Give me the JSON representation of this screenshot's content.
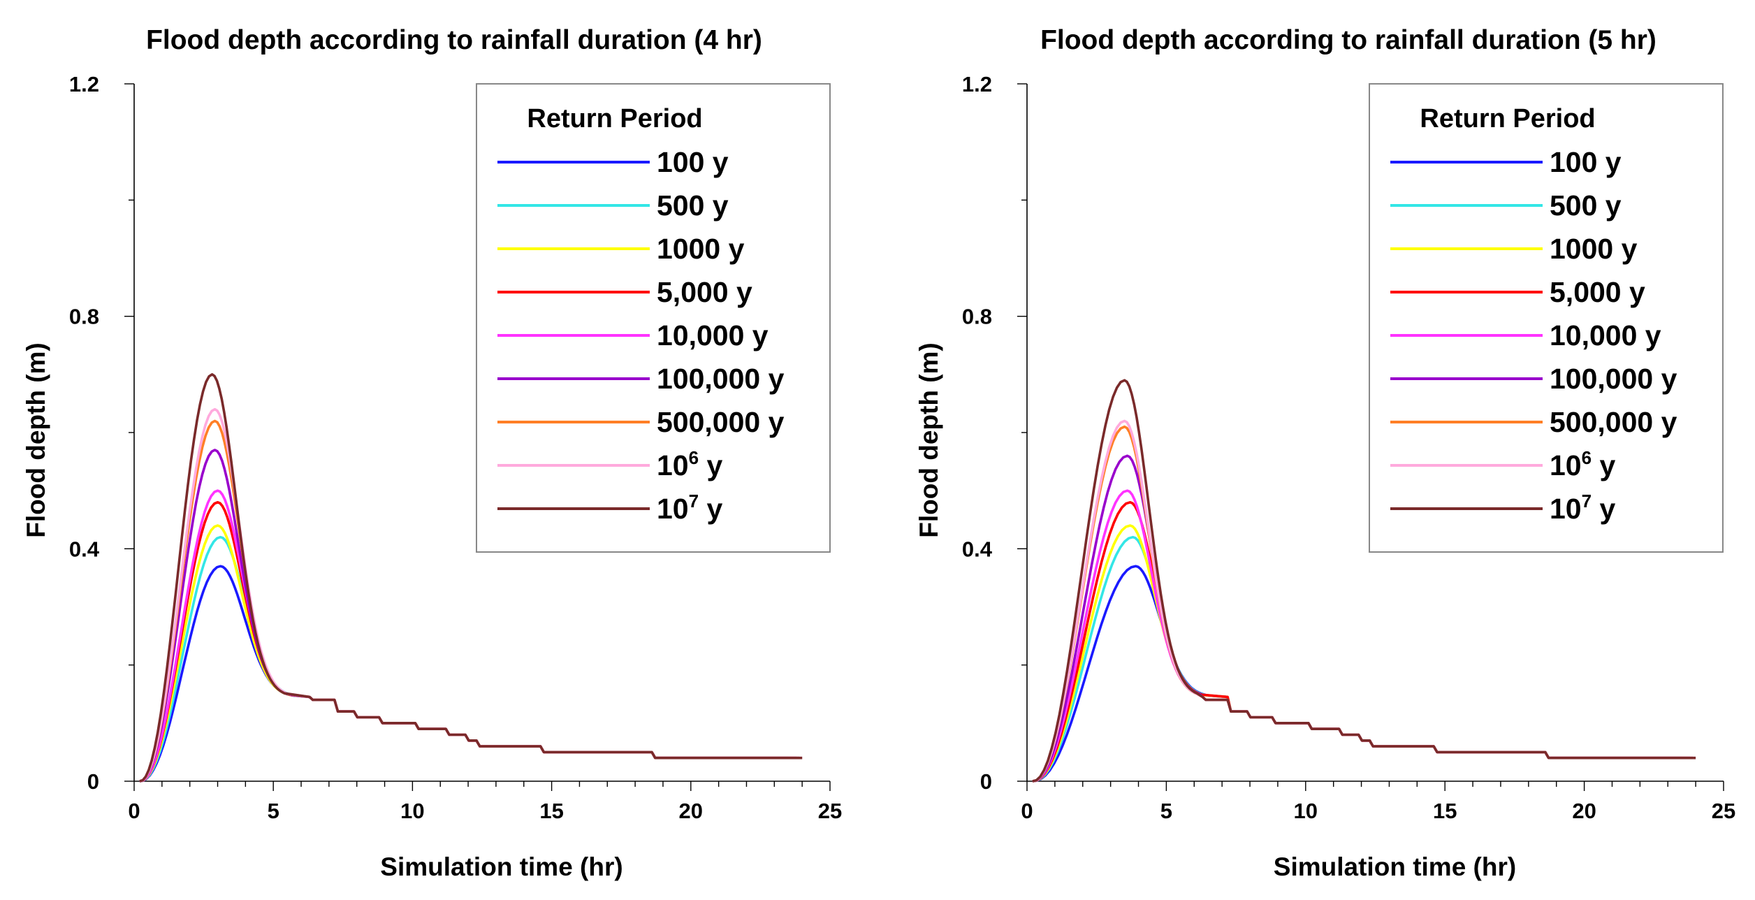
{
  "chart_data": [
    {
      "type": "line",
      "title": "Flood depth according to rainfall duration (4 hr)",
      "xlabel": "Simulation time (hr)",
      "ylabel": "Flood depth (m)",
      "xlim": [
        0,
        25
      ],
      "ylim": [
        0,
        1.2
      ],
      "x_ticks": [
        "0",
        "5",
        "10",
        "15",
        "20",
        "25"
      ],
      "y_ticks": [
        "0",
        "0.4",
        "0.8",
        "1.2"
      ],
      "grid": false,
      "legend": {
        "title": "Return Period",
        "placement": "top-right"
      },
      "series": [
        {
          "name": "100 y",
          "color": "#1a1aff",
          "peak": 0.37,
          "peak_time": 3.1,
          "end_time": 23.5,
          "final": 0.04
        },
        {
          "name": "500 y",
          "color": "#33e6e6",
          "peak": 0.42,
          "peak_time": 3.1,
          "end_time": 23.6,
          "final": 0.04
        },
        {
          "name": "1000 y",
          "color": "#ffff00",
          "peak": 0.44,
          "peak_time": 3.0,
          "end_time": 23.7,
          "final": 0.04
        },
        {
          "name": "5,000 y",
          "color": "#ff0000",
          "peak": 0.48,
          "peak_time": 3.0,
          "end_time": 23.8,
          "final": 0.04
        },
        {
          "name": "10,000 y",
          "color": "#ff33ff",
          "peak": 0.5,
          "peak_time": 3.0,
          "end_time": 23.8,
          "final": 0.04
        },
        {
          "name": "100,000 y",
          "color": "#9900cc",
          "peak": 0.57,
          "peak_time": 2.9,
          "end_time": 23.9,
          "final": 0.04
        },
        {
          "name": "500,000 y",
          "color": "#ff7f27",
          "peak": 0.62,
          "peak_time": 2.9,
          "end_time": 23.9,
          "final": 0.04
        },
        {
          "name_base": "10",
          "name_sup": "6",
          "name_suffix": " y",
          "color": "#ffaadd",
          "peak": 0.64,
          "peak_time": 2.9,
          "end_time": 24.0,
          "final": 0.04
        },
        {
          "name_base": "10",
          "name_sup": "7",
          "name_suffix": " y",
          "color": "#7a2a2a",
          "peak": 0.7,
          "peak_time": 2.8,
          "end_time": 24.0,
          "final": 0.04
        }
      ]
    },
    {
      "type": "line",
      "title": "Flood depth according to rainfall duration (5 hr)",
      "xlabel": "Simulation time (hr)",
      "ylabel": "Flood depth (m)",
      "xlim": [
        0,
        25
      ],
      "ylim": [
        0,
        1.2
      ],
      "x_ticks": [
        "0",
        "5",
        "10",
        "15",
        "20",
        "25"
      ],
      "y_ticks": [
        "0",
        "0.4",
        "0.8",
        "1.2"
      ],
      "grid": false,
      "legend": {
        "title": "Return Period",
        "placement": "top-right"
      },
      "series": [
        {
          "name": "100 y",
          "color": "#1a1aff",
          "peak": 0.37,
          "peak_time": 3.9,
          "end_time": 23.5,
          "final": 0.04
        },
        {
          "name": "500 y",
          "color": "#33e6e6",
          "peak": 0.42,
          "peak_time": 3.8,
          "end_time": 23.6,
          "final": 0.04
        },
        {
          "name": "1000 y",
          "color": "#ffff00",
          "peak": 0.44,
          "peak_time": 3.7,
          "end_time": 23.7,
          "final": 0.04
        },
        {
          "name": "5,000 y",
          "color": "#ff0000",
          "peak": 0.48,
          "peak_time": 3.7,
          "end_time": 23.8,
          "final": 0.04
        },
        {
          "name": "10,000 y",
          "color": "#ff33ff",
          "peak": 0.5,
          "peak_time": 3.6,
          "end_time": 23.8,
          "final": 0.04
        },
        {
          "name": "100,000 y",
          "color": "#9900cc",
          "peak": 0.56,
          "peak_time": 3.6,
          "end_time": 23.9,
          "final": 0.04
        },
        {
          "name": "500,000 y",
          "color": "#ff7f27",
          "peak": 0.61,
          "peak_time": 3.5,
          "end_time": 23.9,
          "final": 0.04
        },
        {
          "name_base": "10",
          "name_sup": "6",
          "name_suffix": " y",
          "color": "#ffaadd",
          "peak": 0.62,
          "peak_time": 3.5,
          "end_time": 24.0,
          "final": 0.04
        },
        {
          "name_base": "10",
          "name_sup": "7",
          "name_suffix": " y",
          "color": "#7a2a2a",
          "peak": 0.69,
          "peak_time": 3.5,
          "end_time": 24.0,
          "final": 0.04
        }
      ]
    }
  ]
}
